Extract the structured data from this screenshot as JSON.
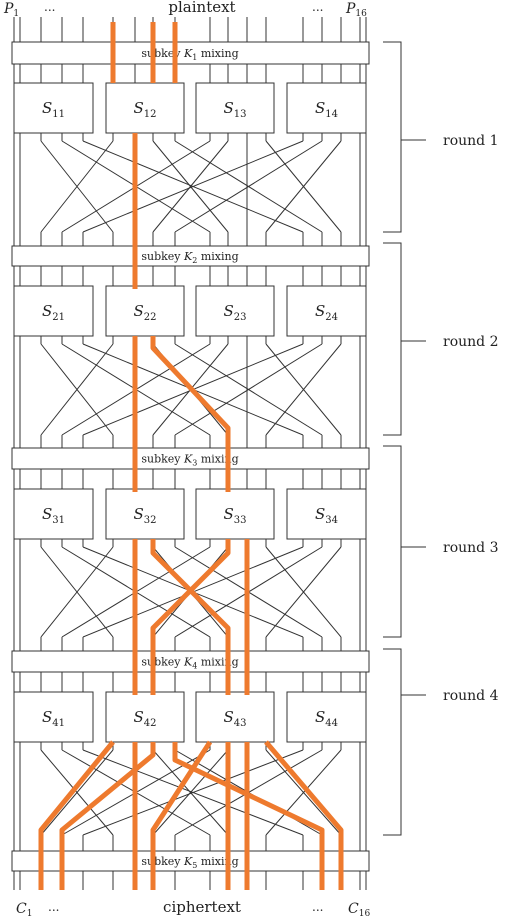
{
  "header": {
    "p_first": "P",
    "p_first_sub": "1",
    "p_last": "P",
    "p_last_sub": "16",
    "ellipsis": "...",
    "label": "plaintext"
  },
  "footer": {
    "c_first": "C",
    "c_first_sub": "1",
    "c_last": "C",
    "c_last_sub": "16",
    "ellipsis": "...",
    "label": "ciphertext"
  },
  "mixing": [
    {
      "prefix": "subkey",
      "key": "K",
      "key_sub": "1",
      "suffix": "mixing"
    },
    {
      "prefix": "subkey",
      "key": "K",
      "key_sub": "2",
      "suffix": "mixing"
    },
    {
      "prefix": "subkey",
      "key": "K",
      "key_sub": "3",
      "suffix": "mixing"
    },
    {
      "prefix": "subkey",
      "key": "K",
      "key_sub": "4",
      "suffix": "mixing"
    },
    {
      "prefix": "subkey",
      "key": "K",
      "key_sub": "5",
      "suffix": "mixing"
    }
  ],
  "sboxes": [
    [
      {
        "name": "S",
        "sub": "11"
      },
      {
        "name": "S",
        "sub": "12"
      },
      {
        "name": "S",
        "sub": "13"
      },
      {
        "name": "S",
        "sub": "14"
      }
    ],
    [
      {
        "name": "S",
        "sub": "21"
      },
      {
        "name": "S",
        "sub": "22"
      },
      {
        "name": "S",
        "sub": "23"
      },
      {
        "name": "S",
        "sub": "24"
      }
    ],
    [
      {
        "name": "S",
        "sub": "31"
      },
      {
        "name": "S",
        "sub": "32"
      },
      {
        "name": "S",
        "sub": "33"
      },
      {
        "name": "S",
        "sub": "34"
      }
    ],
    [
      {
        "name": "S",
        "sub": "41"
      },
      {
        "name": "S",
        "sub": "42"
      },
      {
        "name": "S",
        "sub": "43"
      },
      {
        "name": "S",
        "sub": "44"
      }
    ]
  ],
  "rounds": [
    {
      "label": "round 1"
    },
    {
      "label": "round 2"
    },
    {
      "label": "round 3"
    },
    {
      "label": "round 4"
    }
  ],
  "colors": {
    "highlight": "#ee7a2e",
    "line": "#333333",
    "text": "#222222"
  }
}
